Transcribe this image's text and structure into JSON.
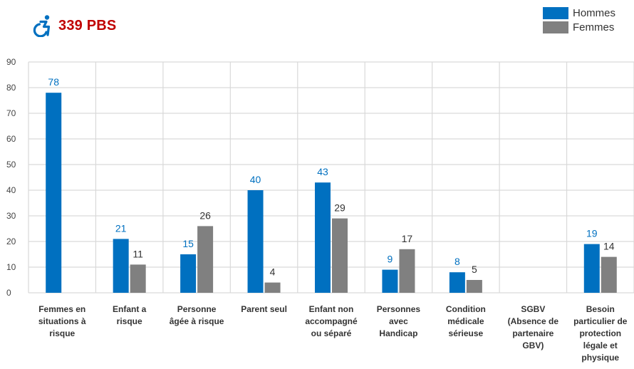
{
  "header": {
    "title": "339 PBS",
    "icon": "wheelchair-icon",
    "title_color": "#c00000"
  },
  "chart_data": {
    "type": "bar",
    "categories": [
      [
        "Femmes en",
        "situations à",
        "risque"
      ],
      [
        "Enfant a",
        "risque"
      ],
      [
        "Personne",
        "âgée à risque"
      ],
      [
        "Parent seul"
      ],
      [
        "Enfant non",
        "accompagné",
        "ou séparé"
      ],
      [
        "Personnes",
        "avec",
        "Handicap"
      ],
      [
        "Condition",
        "médicale",
        "sérieuse"
      ],
      [
        "SGBV",
        "(Absence de",
        "partenaire",
        "GBV)"
      ],
      [
        "Besoin",
        "particulier de",
        "protection",
        "légale et",
        "physique"
      ]
    ],
    "series": [
      {
        "name": "Hommes",
        "color": "#0070c0",
        "values": [
          78,
          21,
          15,
          40,
          43,
          9,
          8,
          null,
          19
        ]
      },
      {
        "name": "Femmes",
        "color": "#808080",
        "values": [
          null,
          11,
          26,
          4,
          29,
          17,
          5,
          null,
          14
        ]
      }
    ],
    "ylim": [
      0,
      90
    ],
    "yticks": [
      "0",
      "10",
      "20",
      "30",
      "40",
      "50",
      "60",
      "70",
      "80",
      "90"
    ],
    "grid": true,
    "legend_position": "top-right"
  }
}
